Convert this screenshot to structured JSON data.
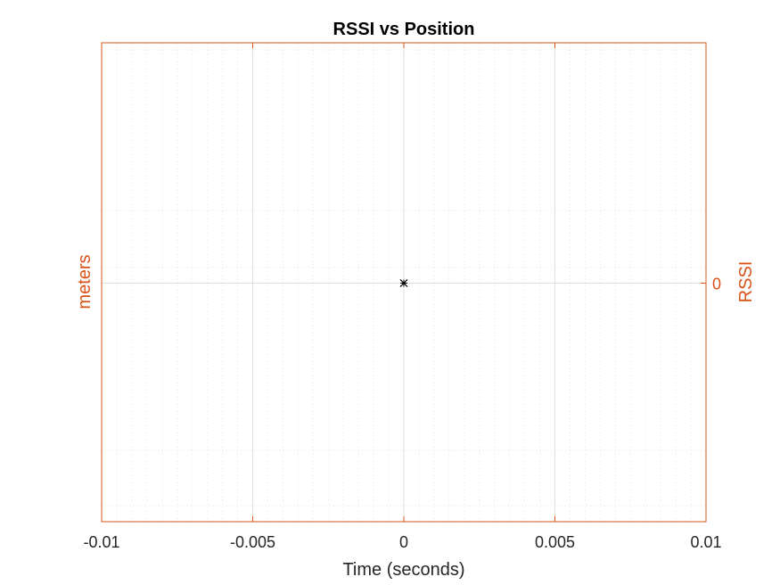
{
  "chart_data": {
    "type": "scatter",
    "title": "RSSI vs Position",
    "xlabel": "Time (seconds)",
    "ylabel_left": "meters",
    "ylabel_right": "RSSI",
    "xlim": [
      -0.01,
      0.01
    ],
    "x_ticks": [
      -0.01,
      -0.005,
      0,
      0.005,
      0.01
    ],
    "x_tick_labels": [
      "-0.01",
      "-0.005",
      "0",
      "0.005",
      "0.01"
    ],
    "y_right_ticks": [
      0
    ],
    "y_right_tick_labels": [
      "0"
    ],
    "grid": true,
    "minor_grid": true,
    "series": [
      {
        "marker": "x",
        "color": "#000000",
        "points": [
          {
            "x": 0,
            "y": 0
          }
        ]
      },
      {
        "marker": "*",
        "color": "#000000",
        "points": [
          {
            "x": 0,
            "y": 0
          }
        ]
      }
    ]
  },
  "colors": {
    "axis_orange": "#D95319",
    "major_grid": "#DFDFDF",
    "minor_grid": "#E6E6E6",
    "tick_text": "#262626",
    "title": "#000000"
  }
}
